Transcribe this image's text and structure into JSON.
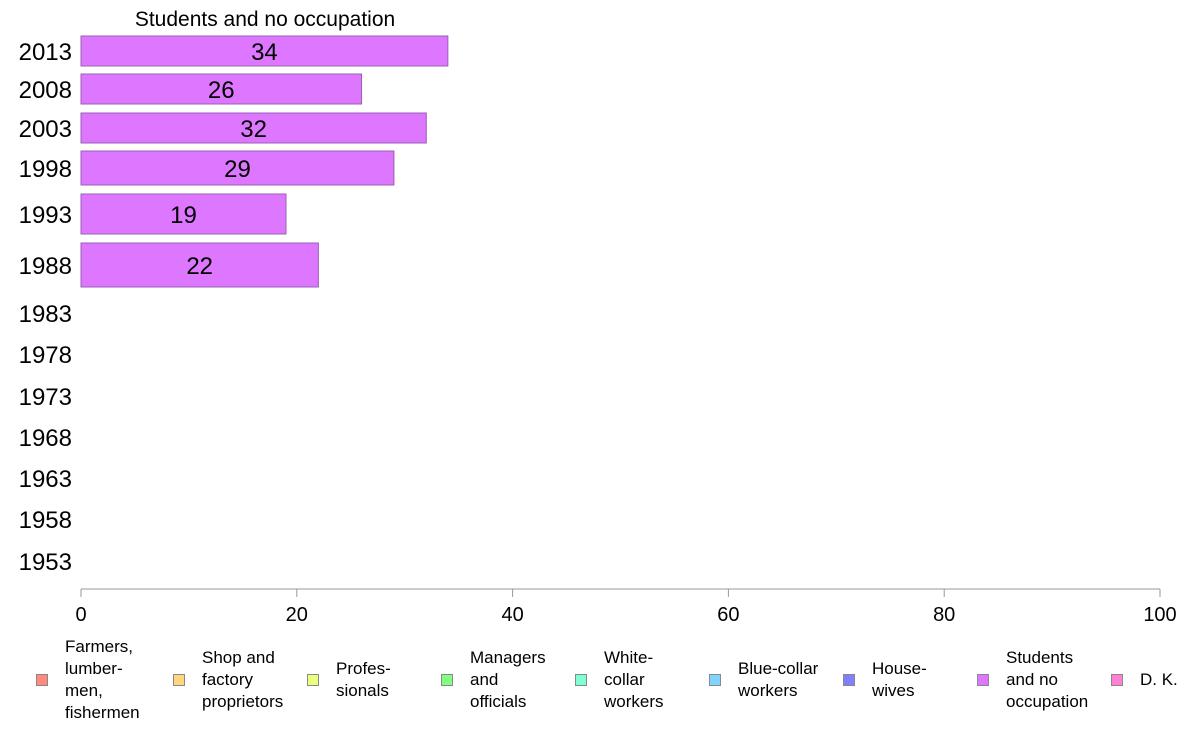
{
  "chart_data": {
    "type": "bar",
    "orientation": "horizontal",
    "title": "Students and no occupation",
    "categories": [
      "2013",
      "2008",
      "2003",
      "1998",
      "1993",
      "1988",
      "1983",
      "1978",
      "1973",
      "1968",
      "1963",
      "1958",
      "1953"
    ],
    "series": [
      {
        "name": "Students and no occupation",
        "color": "#dd77ff",
        "values": [
          34,
          26,
          32,
          29,
          19,
          22,
          null,
          null,
          null,
          null,
          null,
          null,
          null
        ]
      }
    ],
    "data_labels": [
      "34",
      "26",
      "32",
      "29",
      "19",
      "22",
      "",
      "",
      "",
      "",
      "",
      "",
      ""
    ],
    "xlim": [
      0,
      100
    ],
    "xticks": [
      0,
      20,
      40,
      60,
      80,
      100
    ],
    "xlabel": "",
    "ylabel": "",
    "grid": false,
    "legend_position": "bottom",
    "legend": [
      {
        "label": "Farmers,\nlumber-\nmen,\nfishermen",
        "color": "#ff8a80"
      },
      {
        "label": "Shop and\nfactory\nproprietors",
        "color": "#ffd580"
      },
      {
        "label": "Profes-\nsionals",
        "color": "#e8ff80"
      },
      {
        "label": "Managers\nand\nofficials",
        "color": "#80ff80"
      },
      {
        "label": "White-\ncollar\nworkers",
        "color": "#80ffd4"
      },
      {
        "label": "Blue-collar\nworkers",
        "color": "#80d4ff"
      },
      {
        "label": "House-\nwives",
        "color": "#8080ff"
      },
      {
        "label": "Students\nand no\noccupation",
        "color": "#dd77ff"
      },
      {
        "label": "D. K.",
        "color": "#ff80d4"
      }
    ]
  }
}
